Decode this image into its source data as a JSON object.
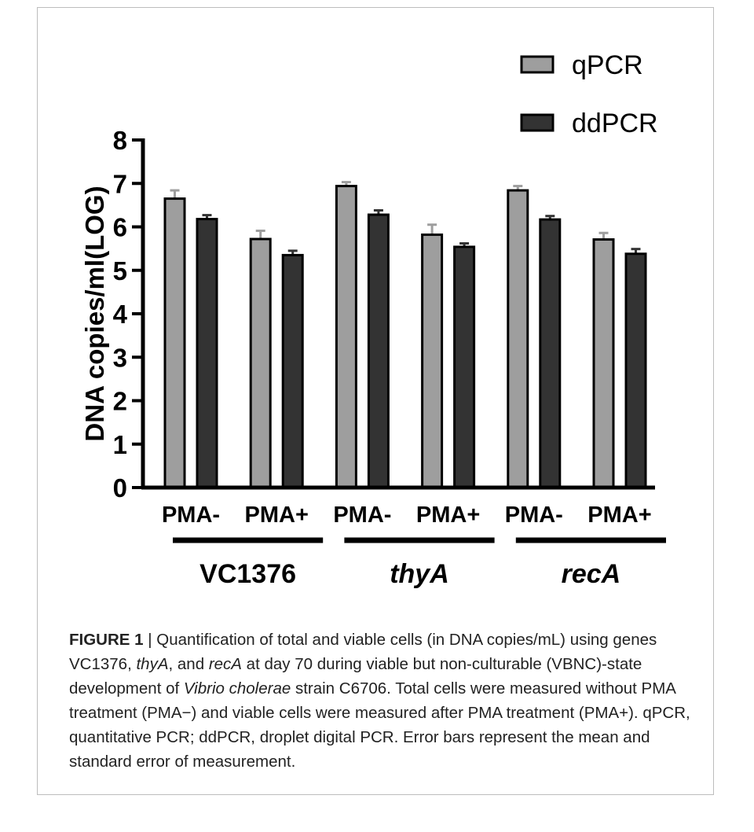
{
  "chart_data": {
    "type": "bar",
    "ylabel": "DNA copies/ml(LOG)",
    "ylim": [
      0,
      8
    ],
    "yticks": [
      "0",
      "1",
      "2",
      "3",
      "4",
      "5",
      "6",
      "7",
      "8"
    ],
    "legend_position": "top-right",
    "grid": false,
    "categories": [
      "PMA-",
      "PMA+",
      "PMA-",
      "PMA+",
      "PMA-",
      "PMA+"
    ],
    "groups": [
      {
        "label": "VC1376",
        "italic": false
      },
      {
        "label": "thyA",
        "italic": true
      },
      {
        "label": "recA",
        "italic": true
      }
    ],
    "series": [
      {
        "name": "qPCR",
        "color": "#9e9e9e",
        "values": [
          6.65,
          5.72,
          6.94,
          5.82,
          6.84,
          5.71
        ],
        "errors": [
          0.19,
          0.19,
          0.09,
          0.23,
          0.1,
          0.15
        ]
      },
      {
        "name": "ddPCR",
        "color": "#333333",
        "values": [
          6.18,
          5.35,
          6.28,
          5.54,
          6.17,
          5.38
        ],
        "errors": [
          0.09,
          0.1,
          0.1,
          0.08,
          0.08,
          0.11
        ]
      }
    ]
  },
  "caption": {
    "label": "FIGURE 1",
    "sep": " | ",
    "t1": "Quantification of total and viable cells (in DNA copies/mL) using genes VC1376, ",
    "g1": "thyA",
    "t2": ", and ",
    "g2": "recA",
    "t3": " at day 70 during viable but non-culturable (VBNC)-state development of ",
    "species": "Vibrio cholerae",
    "t4": " strain C6706. Total cells were measured without PMA treatment (PMA−) and viable cells were measured after PMA treatment (PMA+). qPCR, quantitative PCR; ddPCR, droplet digital PCR. Error bars represent the mean and standard error of measurement."
  }
}
